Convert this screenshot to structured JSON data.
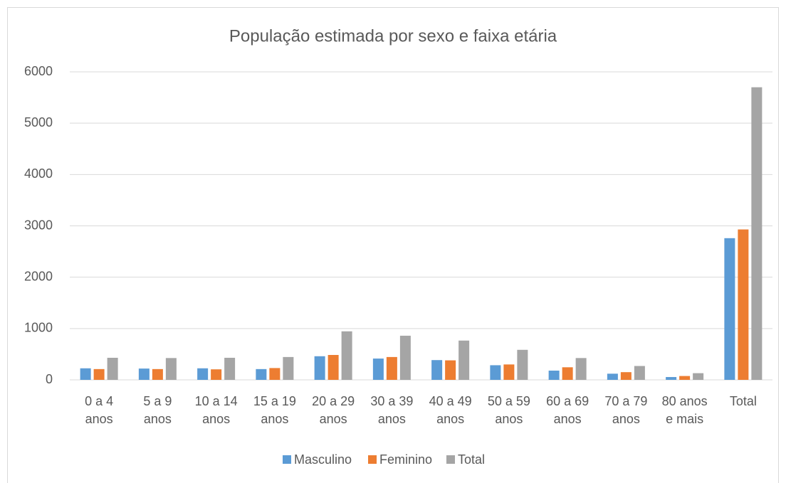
{
  "chart_data": {
    "type": "bar",
    "title": "População estimada por sexo e faixa etária",
    "categories": [
      "0 a 4 anos",
      "5 a 9 anos",
      "10 a 14 anos",
      "15 a 19 anos",
      "20 a 29 anos",
      "30 a 39 anos",
      "40 a 49 anos",
      "50 a 59 anos",
      "60 a 69 anos",
      "70 a 79 anos",
      "80 anos e mais",
      "Total"
    ],
    "series": [
      {
        "name": "Masculino",
        "color": "#5b9bd5",
        "values": [
          225,
          220,
          225,
          210,
          460,
          415,
          385,
          285,
          180,
          120,
          55,
          2760
        ]
      },
      {
        "name": "Feminino",
        "color": "#ed7d31",
        "values": [
          210,
          210,
          205,
          230,
          485,
          445,
          380,
          300,
          245,
          150,
          75,
          2930
        ]
      },
      {
        "name": "Total",
        "color": "#a5a5a5",
        "values": [
          430,
          425,
          430,
          445,
          945,
          860,
          765,
          585,
          425,
          270,
          130,
          5700
        ]
      }
    ],
    "ylim": [
      0,
      6000
    ],
    "yticks": [
      0,
      1000,
      2000,
      3000,
      4000,
      5000,
      6000
    ],
    "grid": true,
    "legend": "bottom"
  }
}
